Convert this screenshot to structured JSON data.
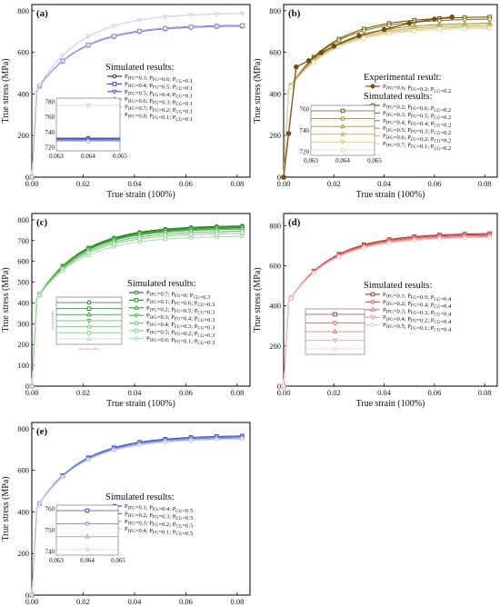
{
  "chart_data": [
    {
      "panel": "(a)",
      "type": "line",
      "xlabel": "True strain (100%)",
      "ylabel": "True stress (MPa)",
      "xlim": [
        0,
        0.085
      ],
      "ylim": [
        0,
        830
      ],
      "xticks": [
        "0.00",
        "0.02",
        "0.04",
        "0.06",
        "0.08"
      ],
      "yticks": [
        "0",
        "200",
        "400",
        "600",
        "800"
      ],
      "ytick_values": [
        0,
        200,
        400,
        600,
        800
      ],
      "legend_title": "Simulated results:",
      "series": [
        {
          "name": "P_IFG=0.3; P_FG=0.6; P_CG=0.1",
          "color": "#1a2a8c",
          "marker": "o",
          "final": 730
        },
        {
          "name": "P_IFG=0.4; P_FG=0.5; P_CG=0.1",
          "color": "#3a4aa8",
          "marker": "s",
          "final": 728
        },
        {
          "name": "P_IFG=0.5; P_FG=0.4; P_CG=0.1",
          "color": "#5564c0",
          "marker": "v",
          "final": 726
        },
        {
          "name": "P_IFG=0.6; P_FG=0.3; P_CG=0.1",
          "color": "#7c88d2",
          "marker": "^",
          "final": 727
        },
        {
          "name": "P_IFG=0.7; P_FG=0.2; P_CG=0.1",
          "color": "#a6aee4",
          "marker": "o",
          "final": 729
        },
        {
          "name": "P_IFG=0.8; P_FG=0.1; P_CG=0.1",
          "color": "#c8cdf0",
          "marker": "v",
          "final": 787
        }
      ],
      "inset": {
        "xticks": [
          "0.063",
          "0.064",
          "0.065"
        ],
        "yticks": [
          "720",
          "740",
          "760",
          "780"
        ]
      }
    },
    {
      "panel": "(b)",
      "type": "line",
      "xlabel": "True strain (100%)",
      "ylabel": "True stress (MPa)",
      "xlim": [
        0,
        0.085
      ],
      "ylim": [
        0,
        830
      ],
      "xticks": [
        "0.00",
        "0.02",
        "0.04",
        "0.06",
        "0.08"
      ],
      "yticks": [
        "0",
        "200",
        "400",
        "600",
        "800"
      ],
      "ytick_values": [
        0,
        200,
        400,
        600,
        800
      ],
      "legend_title2": "Experimental result:",
      "legend_title": "Simulated results:",
      "experimental": {
        "name": "P_IFG=0.6; P_FG=0.2; P_CG=0.2",
        "color": "#7a4a14",
        "x": [
          0.0,
          0.002,
          0.005,
          0.01,
          0.015,
          0.02,
          0.03,
          0.04,
          0.05,
          0.06,
          0.067
        ],
        "y": [
          0,
          210,
          530,
          560,
          600,
          630,
          680,
          710,
          740,
          760,
          770
        ]
      },
      "series": [
        {
          "name": "P_IFG=0.2; P_FG=0.6; P_CG=0.2",
          "color": "#6b5a14",
          "marker": "s",
          "final": 770
        },
        {
          "name": "P_IFG=0.3; P_FG=0.5; P_CG=0.2",
          "color": "#8a7a24",
          "marker": "o",
          "final": 760
        },
        {
          "name": "P_IFG=0.4; P_FG=0.4; P_CG=0.2",
          "color": "#a69638",
          "marker": "^",
          "final": 740
        },
        {
          "name": "P_IFG=0.5; P_FG=0.3; P_CG=0.2",
          "color": "#c2b04e",
          "marker": "*",
          "final": 730
        },
        {
          "name": "P_IFG=0.6; P_FG=0.2; P_CG=0.2",
          "color": "#d6c878",
          "marker": "v",
          "final": 722
        },
        {
          "name": "P_IFG=0.7; P_FG=0.1; P_CG=0.2",
          "color": "#e6dcaa",
          "marker": "s",
          "final": 715
        }
      ],
      "inset": {
        "xticks": [
          "0.063",
          "0.064",
          "0.065"
        ],
        "yticks": [
          "720",
          "740",
          "760"
        ]
      }
    },
    {
      "panel": "(c)",
      "type": "line",
      "xlabel": "True strain (100%)",
      "ylabel": "True stress (MPa)",
      "xlim": [
        0,
        0.085
      ],
      "ylim": [
        0,
        830
      ],
      "xticks": [
        "0.00",
        "0.02",
        "0.04",
        "0.06",
        "0.08"
      ],
      "yticks": [
        "0",
        "100",
        "200",
        "300",
        "400",
        "500",
        "600",
        "700",
        "800"
      ],
      "ytick_values": [
        0,
        100,
        200,
        300,
        400,
        500,
        600,
        700,
        800
      ],
      "legend_title": "Simulated results:",
      "series": [
        {
          "name": "P_IFG=0.7; P_FG=0; P_CG=0.3",
          "color": "#1f7a1f",
          "marker": "o",
          "final": 770
        },
        {
          "name": "P_IFG=0.1; P_FG=0.6; P_CG=0.3",
          "color": "#2e8b2e",
          "marker": "s",
          "final": 765
        },
        {
          "name": "P_IFG=0.2; P_FG=0.5; P_CG=0.3",
          "color": "#3da03d",
          "marker": "^",
          "final": 760
        },
        {
          "name": "P_IFG=0.3; P_FG=0.4; P_CG=0.3",
          "color": "#55b455",
          "marker": "v",
          "final": 755
        },
        {
          "name": "P_IFG=0.4; P_FG=0.3; P_CG=0.3",
          "color": "#70c470",
          "marker": "o",
          "final": 745
        },
        {
          "name": "P_IFG=0.5; P_FG=0.2; P_CG=0.3",
          "color": "#8ed28e",
          "marker": "s",
          "final": 735
        },
        {
          "name": "P_IFG=0.6; P_FG=0.1; P_CG=0.3",
          "color": "#aee0ae",
          "marker": "^",
          "final": 720
        }
      ],
      "inset": {
        "xlabel": "True strain (100%)",
        "ylabel": "True stress (MPa)"
      }
    },
    {
      "panel": "(d)",
      "type": "line",
      "xlabel": "True strain (100%)",
      "ylabel": "True stress (MPa)",
      "xlim": [
        0,
        0.085
      ],
      "ylim": [
        0,
        860
      ],
      "xticks": [
        "0.00",
        "0.02",
        "0.04",
        "0.06",
        "0.08"
      ],
      "yticks": [
        "0",
        "200",
        "400",
        "600",
        "800"
      ],
      "ytick_values": [
        0,
        200,
        400,
        600,
        800
      ],
      "legend_title": "Simulated results:",
      "series": [
        {
          "name": "P_IFG=0.1; P_FG=0.5; P_CG=0.4",
          "color": "#b03a3a",
          "marker": "s",
          "final": 760
        },
        {
          "name": "P_IFG=0.2; P_FG=0.4; P_CG=0.4",
          "color": "#c85a5a",
          "marker": "o",
          "final": 755
        },
        {
          "name": "P_IFG=0.3; P_FG=0.3; P_CG=0.4",
          "color": "#d87a7a",
          "marker": "^",
          "final": 750
        },
        {
          "name": "P_IFG=0.4; P_FG=0.2; P_CG=0.4",
          "color": "#e6a0a0",
          "marker": "v",
          "final": 745
        },
        {
          "name": "P_IFG=0.5; P_FG=0.1; P_CG=0.4",
          "color": "#f2c6c6",
          "marker": "o",
          "final": 740
        }
      ]
    },
    {
      "panel": "(e)",
      "type": "line",
      "xlabel": "True strain (100%)",
      "ylabel": "True stress (MPa)",
      "xlim": [
        0,
        0.085
      ],
      "ylim": [
        0,
        830
      ],
      "xticks": [
        "0.00",
        "0.02",
        "0.04",
        "0.06",
        "0.08"
      ],
      "yticks": [
        "0",
        "200",
        "400",
        "600",
        "800"
      ],
      "ytick_values": [
        0,
        200,
        400,
        600,
        800
      ],
      "legend_title": "Simulated results:",
      "series": [
        {
          "name": "P_IFG=0.1; P_FG=0.4; P_CG=0.5",
          "color": "#3a4ec0",
          "marker": "s",
          "final": 765
        },
        {
          "name": "P_IFG=0.2; P_FG=0.3; P_CG=0.5",
          "color": "#6a7ad0",
          "marker": "o",
          "final": 760
        },
        {
          "name": "P_IFG=0.3; P_FG=0.2; P_CG=0.5",
          "color": "#96a2e0",
          "marker": "^",
          "final": 755
        },
        {
          "name": "P_IFG=0.4; P_FG=0.1; P_CG=0.5",
          "color": "#c4ccf0",
          "marker": "v",
          "final": 750
        }
      ],
      "inset": {
        "xticks": [
          "0.063",
          "0.064",
          "0.065"
        ],
        "yticks": [
          "740",
          "750",
          "760"
        ]
      }
    }
  ]
}
